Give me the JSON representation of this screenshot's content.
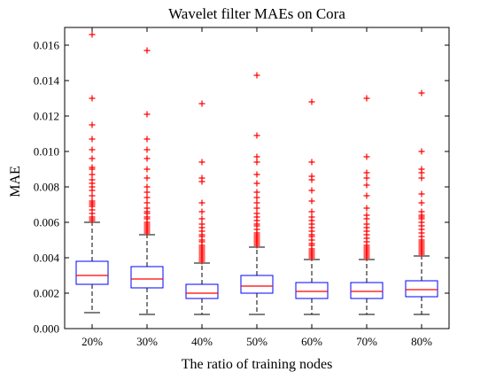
{
  "chart_data": {
    "type": "box",
    "title": "Wavelet filter MAEs on Cora",
    "xlabel": "The ratio of training nodes",
    "ylabel": "MAE",
    "categories": [
      "20%",
      "30%",
      "40%",
      "50%",
      "60%",
      "70%",
      "80%"
    ],
    "ylim": [
      0,
      0.017
    ],
    "yticks": [
      0,
      0.002,
      0.004,
      0.006,
      0.008,
      0.01,
      0.012,
      0.014,
      0.016
    ],
    "ytick_labels": [
      "0.000",
      "0.002",
      "0.004",
      "0.006",
      "0.008",
      "0.010",
      "0.012",
      "0.014",
      "0.016"
    ],
    "grid": false,
    "box_color": "#0000ff",
    "median_color": "#ff0000",
    "outlier_color": "#ff0000",
    "whisker_color": "#000000",
    "series": [
      {
        "category": "20%",
        "whisker_low": 0.0009,
        "q1": 0.0025,
        "median": 0.003,
        "q3": 0.0038,
        "whisker_high": 0.006,
        "outliers": [
          0.0061,
          0.0062,
          0.0063,
          0.0065,
          0.0067,
          0.0069,
          0.007,
          0.0071,
          0.0072,
          0.0075,
          0.0078,
          0.008,
          0.0082,
          0.0084,
          0.0087,
          0.009,
          0.0091,
          0.0096,
          0.0101,
          0.0107,
          0.0115,
          0.013,
          0.0166
        ]
      },
      {
        "category": "30%",
        "whisker_low": 0.0008,
        "q1": 0.0023,
        "median": 0.0028,
        "q3": 0.0035,
        "whisker_high": 0.0053,
        "outliers": [
          0.0054,
          0.0055,
          0.0056,
          0.0057,
          0.0058,
          0.0059,
          0.006,
          0.0062,
          0.0063,
          0.0065,
          0.0066,
          0.0068,
          0.0071,
          0.0074,
          0.0077,
          0.008,
          0.0085,
          0.009,
          0.0096,
          0.0101,
          0.0107,
          0.0121,
          0.0157
        ]
      },
      {
        "category": "40%",
        "whisker_low": 0.0008,
        "q1": 0.0017,
        "median": 0.002,
        "q3": 0.0025,
        "whisker_high": 0.0037,
        "outliers": [
          0.0038,
          0.0039,
          0.004,
          0.0041,
          0.0042,
          0.0043,
          0.0044,
          0.0045,
          0.0046,
          0.0047,
          0.0049,
          0.005,
          0.0052,
          0.0053,
          0.0055,
          0.0057,
          0.0059,
          0.0062,
          0.0066,
          0.0071,
          0.0083,
          0.0085,
          0.0094,
          0.0127
        ]
      },
      {
        "category": "50%",
        "whisker_low": 0.0008,
        "q1": 0.002,
        "median": 0.0024,
        "q3": 0.003,
        "whisker_high": 0.0046,
        "outliers": [
          0.0047,
          0.0048,
          0.0049,
          0.005,
          0.0051,
          0.0052,
          0.0053,
          0.0054,
          0.0056,
          0.0058,
          0.0059,
          0.0061,
          0.0063,
          0.0065,
          0.0068,
          0.0071,
          0.0074,
          0.0077,
          0.0082,
          0.0087,
          0.0094,
          0.0097,
          0.0109,
          0.0143
        ]
      },
      {
        "category": "60%",
        "whisker_low": 0.0008,
        "q1": 0.0017,
        "median": 0.0021,
        "q3": 0.0026,
        "whisker_high": 0.0039,
        "outliers": [
          0.004,
          0.0041,
          0.0042,
          0.0043,
          0.0044,
          0.0045,
          0.0047,
          0.0048,
          0.005,
          0.0052,
          0.0053,
          0.0055,
          0.0057,
          0.0059,
          0.0061,
          0.0063,
          0.0066,
          0.0072,
          0.0078,
          0.0084,
          0.0086,
          0.0094,
          0.0128
        ]
      },
      {
        "category": "70%",
        "whisker_low": 0.0008,
        "q1": 0.0017,
        "median": 0.0021,
        "q3": 0.0026,
        "whisker_high": 0.0039,
        "outliers": [
          0.004,
          0.0041,
          0.0042,
          0.0043,
          0.0044,
          0.0045,
          0.0046,
          0.0047,
          0.0049,
          0.0051,
          0.0053,
          0.0055,
          0.0057,
          0.0059,
          0.0062,
          0.0064,
          0.0068,
          0.0075,
          0.0081,
          0.0085,
          0.0088,
          0.0097,
          0.013
        ]
      },
      {
        "category": "80%",
        "whisker_low": 0.0008,
        "q1": 0.0018,
        "median": 0.0022,
        "q3": 0.0027,
        "whisker_high": 0.0041,
        "outliers": [
          0.0042,
          0.0043,
          0.0044,
          0.0045,
          0.0046,
          0.0047,
          0.0048,
          0.0049,
          0.005,
          0.0052,
          0.0054,
          0.0056,
          0.0058,
          0.006,
          0.0062,
          0.0063,
          0.0064,
          0.0066,
          0.0071,
          0.0076,
          0.0085,
          0.0088,
          0.009,
          0.01,
          0.0133
        ]
      }
    ]
  }
}
